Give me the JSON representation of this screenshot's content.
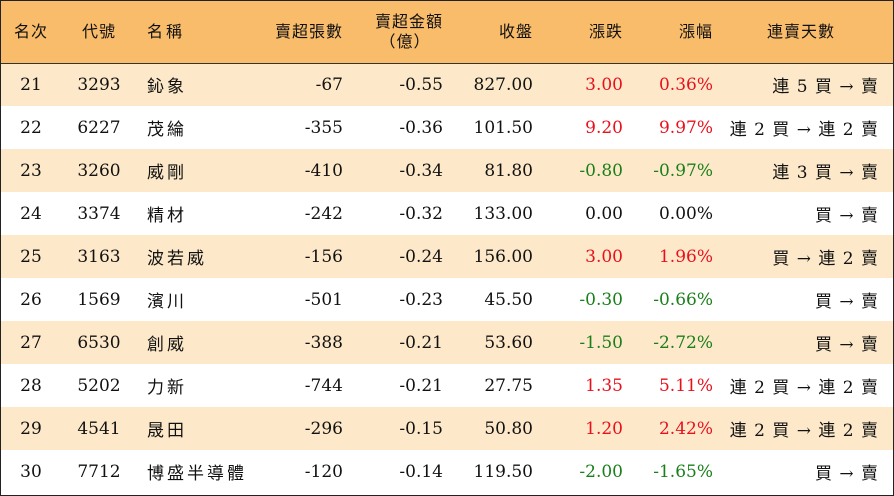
{
  "header": {
    "rank": "名次",
    "code": "代號",
    "name": "名稱",
    "sell_lots": "賣超張數",
    "sell_amount_line1": "賣超金額",
    "sell_amount_line2": "（億）",
    "close": "收盤",
    "change": "漲跌",
    "pct": "漲幅",
    "streak": "連賣天數"
  },
  "colors": {
    "header_bg": "#f9bc6a",
    "stripe_bg": "#fde9c9",
    "up": "#e8101d",
    "down": "#1a7f1a"
  },
  "rows": [
    {
      "rank": "21",
      "code": "3293",
      "name": "鈊象",
      "lots": "-67",
      "amount": "-0.55",
      "close": "827.00",
      "change": "3.00",
      "pct": "0.36%",
      "dir": "up",
      "streak": "連 5 買 → 賣"
    },
    {
      "rank": "22",
      "code": "6227",
      "name": "茂綸",
      "lots": "-355",
      "amount": "-0.36",
      "close": "101.50",
      "change": "9.20",
      "pct": "9.97%",
      "dir": "up",
      "streak": "連 2 買 → 連 2 賣"
    },
    {
      "rank": "23",
      "code": "3260",
      "name": "威剛",
      "lots": "-410",
      "amount": "-0.34",
      "close": "81.80",
      "change": "-0.80",
      "pct": "-0.97%",
      "dir": "down",
      "streak": "連 3 買 → 賣"
    },
    {
      "rank": "24",
      "code": "3374",
      "name": "精材",
      "lots": "-242",
      "amount": "-0.32",
      "close": "133.00",
      "change": "0.00",
      "pct": "0.00%",
      "dir": "flat",
      "streak": "買 → 賣"
    },
    {
      "rank": "25",
      "code": "3163",
      "name": "波若威",
      "lots": "-156",
      "amount": "-0.24",
      "close": "156.00",
      "change": "3.00",
      "pct": "1.96%",
      "dir": "up",
      "streak": "買 → 連 2 賣"
    },
    {
      "rank": "26",
      "code": "1569",
      "name": "濱川",
      "lots": "-501",
      "amount": "-0.23",
      "close": "45.50",
      "change": "-0.30",
      "pct": "-0.66%",
      "dir": "down",
      "streak": "買 → 賣"
    },
    {
      "rank": "27",
      "code": "6530",
      "name": "創威",
      "lots": "-388",
      "amount": "-0.21",
      "close": "53.60",
      "change": "-1.50",
      "pct": "-2.72%",
      "dir": "down",
      "streak": "買 → 賣"
    },
    {
      "rank": "28",
      "code": "5202",
      "name": "力新",
      "lots": "-744",
      "amount": "-0.21",
      "close": "27.75",
      "change": "1.35",
      "pct": "5.11%",
      "dir": "up",
      "streak": "連 2 買 → 連 2 賣"
    },
    {
      "rank": "29",
      "code": "4541",
      "name": "晟田",
      "lots": "-296",
      "amount": "-0.15",
      "close": "50.80",
      "change": "1.20",
      "pct": "2.42%",
      "dir": "up",
      "streak": "連 2 買 → 連 2 賣"
    },
    {
      "rank": "30",
      "code": "7712",
      "name": "博盛半導體",
      "lots": "-120",
      "amount": "-0.14",
      "close": "119.50",
      "change": "-2.00",
      "pct": "-1.65%",
      "dir": "down",
      "streak": "買 → 賣"
    }
  ]
}
